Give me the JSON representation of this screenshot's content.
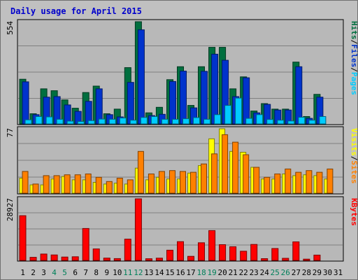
{
  "window": {
    "title": "Daily usage for April 2015"
  },
  "colors": {
    "background": "#c0c0c0",
    "plot_background": "#b8b8b8",
    "gridline": "#808080",
    "pages": "#00ccff",
    "files": "#0033cc",
    "hits": "#006f3f",
    "sites": "#ff8000",
    "visits": "#ffff00",
    "kbytes": "#ff0000",
    "day_label_default": "#000000",
    "day_label_weekend": "#00805a"
  },
  "chart_data": [
    {
      "type": "bar",
      "panel": "top",
      "axis_max_label": "554",
      "ylim": [
        0,
        554
      ],
      "legend": [
        {
          "name": "Pages",
          "color": "#00ccff"
        },
        {
          "name": "Files",
          "color": "#0033cc"
        },
        {
          "name": "Hits",
          "color": "#006f3f"
        }
      ],
      "legend_separator": "/",
      "categories": [
        "1",
        "2",
        "3",
        "4",
        "5",
        "6",
        "7",
        "8",
        "9",
        "10",
        "11",
        "12",
        "13",
        "14",
        "15",
        "16",
        "17",
        "18",
        "19",
        "20",
        "21",
        "22",
        "23",
        "24",
        "25",
        "26",
        "27",
        "28",
        "29",
        "30",
        "31"
      ],
      "series": [
        {
          "name": "Hits",
          "values": [
            242,
            55,
            190,
            180,
            130,
            85,
            170,
            205,
            55,
            80,
            305,
            554,
            60,
            90,
            240,
            310,
            100,
            310,
            415,
            415,
            190,
            255,
            70,
            110,
            80,
            80,
            335,
            40,
            160,
            0,
            0
          ]
        },
        {
          "name": "Files",
          "values": [
            228,
            50,
            145,
            148,
            103,
            68,
            122,
            190,
            50,
            38,
            225,
            510,
            45,
            52,
            230,
            286,
            87,
            285,
            378,
            345,
            148,
            250,
            60,
            106,
            75,
            75,
            310,
            30,
            145,
            0,
            0
          ]
        },
        {
          "name": "Pages",
          "values": [
            22,
            40,
            38,
            25,
            15,
            13,
            18,
            26,
            25,
            32,
            20,
            35,
            40,
            25,
            25,
            28,
            34,
            25,
            50,
            100,
            140,
            30,
            50,
            24,
            20,
            16,
            36,
            20,
            40,
            0,
            0
          ]
        }
      ]
    },
    {
      "type": "bar",
      "panel": "middle",
      "axis_max_label": "77",
      "ylim": [
        0,
        77
      ],
      "legend": [
        {
          "name": "Sites",
          "color": "#ff8000"
        },
        {
          "name": "Visits",
          "color": "#ffff00"
        }
      ],
      "legend_separator": "/",
      "categories": [
        "1",
        "2",
        "3",
        "4",
        "5",
        "6",
        "7",
        "8",
        "9",
        "10",
        "11",
        "12",
        "13",
        "14",
        "15",
        "16",
        "17",
        "18",
        "19",
        "20",
        "21",
        "22",
        "23",
        "24",
        "25",
        "26",
        "27",
        "28",
        "29",
        "30",
        "31"
      ],
      "series": [
        {
          "name": "Visits",
          "values": [
            18,
            10,
            10,
            17,
            20,
            16,
            16,
            13,
            11,
            12,
            11,
            30,
            16,
            19,
            17,
            17,
            24,
            33,
            65,
            77,
            50,
            49,
            31,
            17,
            17,
            23,
            21,
            22,
            21,
            17,
            0
          ]
        },
        {
          "name": "Sites",
          "values": [
            26,
            11,
            21,
            21,
            22,
            22,
            23,
            19,
            14,
            18,
            16,
            50,
            23,
            26,
            27,
            26,
            25,
            35,
            47,
            70,
            61,
            46,
            31,
            19,
            23,
            29,
            25,
            27,
            25,
            29,
            0
          ]
        }
      ]
    },
    {
      "type": "bar",
      "panel": "bottom",
      "axis_max_label": "28927",
      "ylim": [
        0,
        28927
      ],
      "legend": [
        {
          "name": "KBytes",
          "color": "#ff0000"
        }
      ],
      "categories": [
        "1",
        "2",
        "3",
        "4",
        "5",
        "6",
        "7",
        "8",
        "9",
        "10",
        "11",
        "12",
        "13",
        "14",
        "15",
        "16",
        "17",
        "18",
        "19",
        "20",
        "21",
        "22",
        "23",
        "24",
        "25",
        "26",
        "27",
        "28",
        "29",
        "30",
        "31"
      ],
      "series": [
        {
          "name": "KBytes",
          "values": [
            21000,
            1450,
            3000,
            2550,
            1580,
            1700,
            15000,
            5400,
            1100,
            850,
            10000,
            28927,
            800,
            1050,
            4800,
            8800,
            1900,
            8300,
            14000,
            7400,
            6400,
            4300,
            7500,
            810,
            5600,
            1000,
            8700,
            600,
            2500,
            0,
            0
          ]
        }
      ]
    }
  ],
  "x_axis": {
    "day_labels": [
      "1",
      "2",
      "3",
      "4",
      "5",
      "6",
      "7",
      "8",
      "9",
      "10",
      "11",
      "12",
      "13",
      "14",
      "15",
      "16",
      "17",
      "18",
      "19",
      "20",
      "21",
      "22",
      "23",
      "24",
      "25",
      "26",
      "27",
      "28",
      "29",
      "30",
      "31"
    ],
    "weekend_days": [
      "4",
      "5",
      "11",
      "12",
      "18",
      "19",
      "25",
      "26"
    ]
  }
}
